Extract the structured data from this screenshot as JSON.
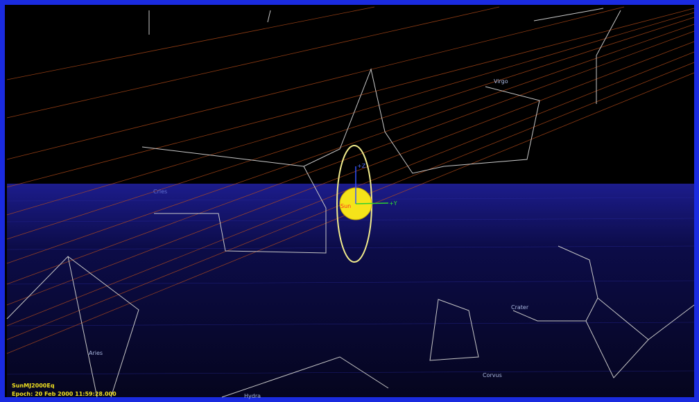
{
  "view": {
    "coordinate_system": "SunMJ2000Eq",
    "epoch": "Epoch: 20 Feb 2000 11:59:28.000"
  },
  "constellations": [
    "Virgo",
    "Crater",
    "Corvus",
    "Aries",
    "Hydra",
    "Crles"
  ],
  "body": {
    "name": "Sun",
    "axis_y": "+Y",
    "axis_z": "+Z"
  }
}
